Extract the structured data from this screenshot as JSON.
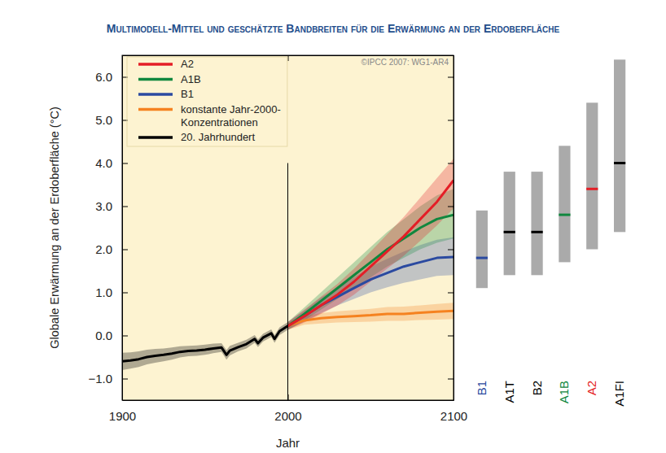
{
  "chart_data": [
    {
      "type": "line",
      "title": "Multimodell-Mittel und geschätzte Bandbreiten für die Erwärmung an der Erdoberfläche",
      "annotation": "©IPCC 2007: WG1-AR4",
      "x_label": "Jahr",
      "y_label": "Globale Erwärmung an der Erdoberfläche (°C)",
      "xlim": [
        1900,
        2100
      ],
      "xticks": [
        1900,
        2000,
        2100
      ],
      "ylim": [
        -1.5,
        6.5
      ],
      "yticks": [
        {
          "value": -1,
          "label": "−1.0"
        },
        {
          "value": 0,
          "label": "0.0"
        },
        {
          "value": 1,
          "label": "1.0"
        },
        {
          "value": 2,
          "label": "2.0"
        },
        {
          "value": 3,
          "label": "3.0"
        },
        {
          "value": 4,
          "label": "4.0"
        },
        {
          "value": 5,
          "label": "5.0"
        },
        {
          "value": 6,
          "label": "6.0"
        }
      ],
      "grid": false,
      "legend": "upper left",
      "divider": {
        "x": 2000,
        "ymax": 4.0
      },
      "series": [
        {
          "name": "A2",
          "color": "#e41e26",
          "x": [
            2000,
            2010,
            2020,
            2030,
            2040,
            2050,
            2060,
            2070,
            2080,
            2090,
            2100
          ],
          "values": [
            0.22,
            0.45,
            0.7,
            0.95,
            1.25,
            1.6,
            1.95,
            2.3,
            2.7,
            3.1,
            3.6
          ],
          "lower": [
            0.13,
            0.3,
            0.5,
            0.7,
            0.95,
            1.25,
            1.55,
            1.85,
            2.2,
            2.55,
            2.95
          ],
          "upper": [
            0.31,
            0.6,
            0.9,
            1.2,
            1.55,
            1.95,
            2.35,
            2.75,
            3.2,
            3.65,
            4.1
          ]
        },
        {
          "name": "A1B",
          "color": "#10873e",
          "x": [
            2000,
            2010,
            2020,
            2030,
            2040,
            2050,
            2060,
            2070,
            2080,
            2090,
            2100
          ],
          "values": [
            0.22,
            0.5,
            0.8,
            1.1,
            1.4,
            1.7,
            2.0,
            2.25,
            2.5,
            2.7,
            2.8
          ],
          "lower": [
            0.13,
            0.35,
            0.6,
            0.85,
            1.1,
            1.35,
            1.6,
            1.8,
            2.0,
            2.15,
            2.25
          ],
          "upper": [
            0.31,
            0.65,
            1.0,
            1.35,
            1.7,
            2.05,
            2.4,
            2.7,
            3.0,
            3.25,
            3.4
          ]
        },
        {
          "name": "B1",
          "color": "#2b4aa0",
          "x": [
            2000,
            2010,
            2020,
            2030,
            2040,
            2050,
            2060,
            2070,
            2080,
            2090,
            2100
          ],
          "values": [
            0.22,
            0.45,
            0.7,
            0.9,
            1.1,
            1.3,
            1.45,
            1.6,
            1.7,
            1.8,
            1.82
          ],
          "lower": [
            0.13,
            0.32,
            0.52,
            0.7,
            0.85,
            1.0,
            1.12,
            1.22,
            1.3,
            1.38,
            1.4
          ],
          "upper": [
            0.31,
            0.58,
            0.88,
            1.1,
            1.35,
            1.6,
            1.78,
            1.95,
            2.1,
            2.22,
            2.28
          ]
        },
        {
          "name": "konstante Jahr-2000-Konzentrationen",
          "color": "#f58220",
          "x": [
            2000,
            2010,
            2020,
            2030,
            2040,
            2050,
            2060,
            2070,
            2080,
            2090,
            2100
          ],
          "values": [
            0.22,
            0.35,
            0.4,
            0.43,
            0.45,
            0.47,
            0.5,
            0.5,
            0.53,
            0.55,
            0.57
          ],
          "lower": [
            0.13,
            0.25,
            0.28,
            0.3,
            0.31,
            0.32,
            0.34,
            0.34,
            0.36,
            0.37,
            0.38
          ],
          "upper": [
            0.31,
            0.45,
            0.52,
            0.56,
            0.59,
            0.62,
            0.66,
            0.67,
            0.7,
            0.73,
            0.76
          ]
        },
        {
          "name": "20. Jahrhundert",
          "color": "#000000",
          "x": [
            1900,
            1905,
            1910,
            1915,
            1920,
            1925,
            1930,
            1935,
            1940,
            1945,
            1950,
            1955,
            1960,
            1963,
            1965,
            1970,
            1975,
            1980,
            1982,
            1985,
            1990,
            1992,
            1995,
            2000
          ],
          "values": [
            -0.6,
            -0.58,
            -0.55,
            -0.5,
            -0.47,
            -0.45,
            -0.42,
            -0.38,
            -0.36,
            -0.35,
            -0.33,
            -0.3,
            -0.28,
            -0.45,
            -0.35,
            -0.27,
            -0.2,
            -0.08,
            -0.18,
            -0.05,
            0.05,
            -0.08,
            0.1,
            0.22
          ],
          "lower": [
            -0.8,
            -0.77,
            -0.73,
            -0.67,
            -0.63,
            -0.6,
            -0.56,
            -0.51,
            -0.48,
            -0.47,
            -0.45,
            -0.41,
            -0.38,
            -0.56,
            -0.46,
            -0.37,
            -0.3,
            -0.17,
            -0.27,
            -0.14,
            -0.04,
            -0.17,
            0.01,
            0.13
          ],
          "upper": [
            -0.4,
            -0.39,
            -0.37,
            -0.33,
            -0.31,
            -0.3,
            -0.28,
            -0.25,
            -0.24,
            -0.23,
            -0.21,
            -0.19,
            -0.18,
            -0.34,
            -0.24,
            -0.17,
            -0.1,
            0.01,
            -0.09,
            0.04,
            0.14,
            0.01,
            0.19,
            0.31
          ]
        }
      ]
    },
    {
      "type": "range_bar",
      "categories": [
        "B1",
        "A1T",
        "B2",
        "A1B",
        "A2",
        "A1FI"
      ],
      "low": [
        1.1,
        1.4,
        1.4,
        1.7,
        2.0,
        2.4
      ],
      "high": [
        2.9,
        3.8,
        3.8,
        4.4,
        5.4,
        6.4
      ],
      "values": [
        1.8,
        2.4,
        2.4,
        2.8,
        3.4,
        4.0
      ],
      "color": "#aaaaaa",
      "colors": [
        "#2b4aa0",
        "#000000",
        "#000000",
        "#10873e",
        "#e41e26",
        "#000000"
      ],
      "tick_labels": "x"
    }
  ]
}
